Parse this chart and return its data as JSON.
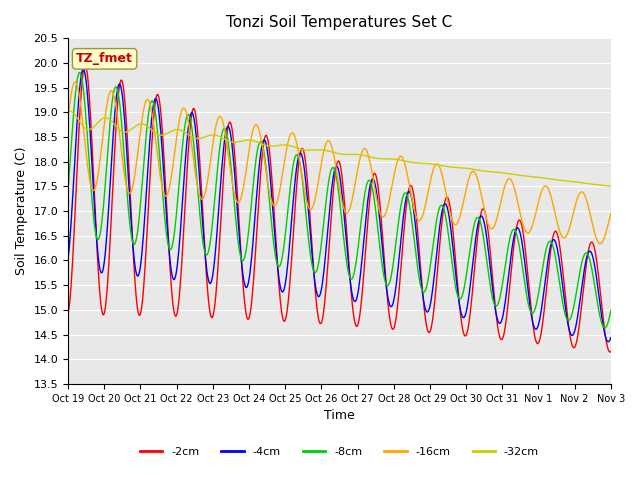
{
  "title": "Tonzi Soil Temperatures Set C",
  "xlabel": "Time",
  "ylabel": "Soil Temperature (C)",
  "ylim": [
    13.5,
    20.5
  ],
  "xtick_labels": [
    "Oct 19",
    "Oct 20",
    "Oct 21",
    "Oct 22",
    "Oct 23",
    "Oct 24",
    "Oct 25",
    "Oct 26",
    "Oct 27",
    "Oct 28",
    "Oct 29",
    "Oct 30",
    "Oct 31",
    "Nov 1",
    "Nov 2",
    "Nov 3"
  ],
  "legend_labels": [
    "-2cm",
    "-4cm",
    "-8cm",
    "-16cm",
    "-32cm"
  ],
  "legend_colors": [
    "#ff0000",
    "#0000ff",
    "#00cc00",
    "#ffa500",
    "#cccc00"
  ],
  "annotation_text": "TZ_fmet",
  "annotation_color": "#cc0000",
  "annotation_bg": "#ffffcc",
  "colors": {
    "d2cm": "#ff0000",
    "d4cm": "#0000ff",
    "d8cm": "#00cc00",
    "d16cm": "#ffa500",
    "d32cm": "#cccc00"
  }
}
